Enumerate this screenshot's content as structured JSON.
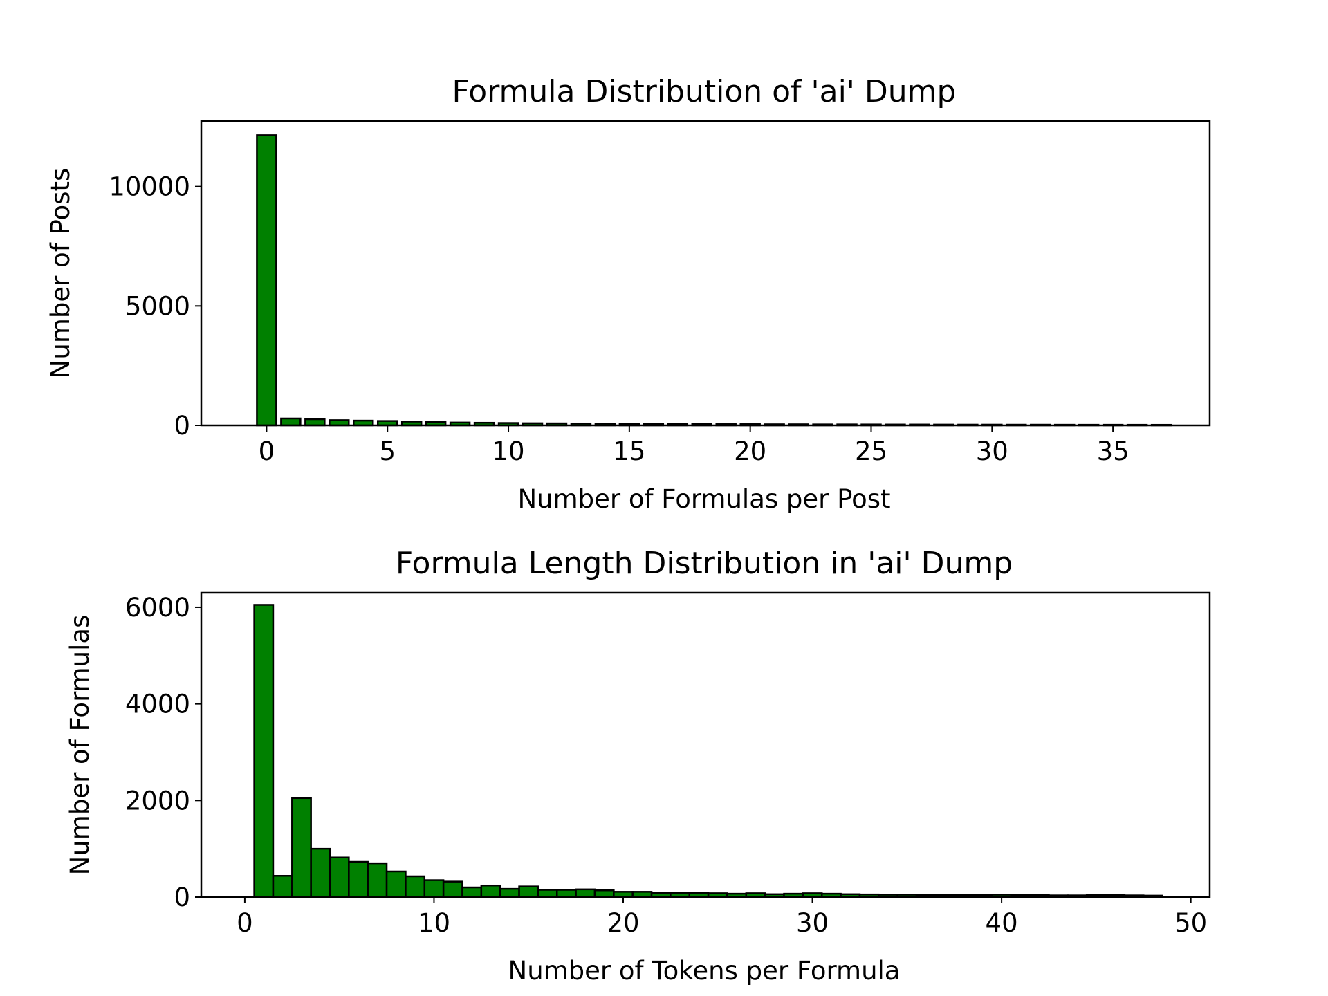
{
  "chart_data": [
    {
      "type": "bar",
      "title": "Formula Distribution of 'ai' Dump",
      "xlabel": "Number of Formulas per Post",
      "ylabel": "Number of Posts",
      "xlim": [
        -2.7,
        39.0
      ],
      "ylim": [
        0,
        12740
      ],
      "xticks": [
        0,
        5,
        10,
        15,
        20,
        25,
        30,
        35
      ],
      "yticks": [
        0,
        5000,
        10000
      ],
      "bar_color": "#008000",
      "grid": false,
      "x": [
        0,
        1,
        2,
        3,
        4,
        5,
        6,
        7,
        8,
        9,
        10,
        11,
        12,
        13,
        14,
        15,
        16,
        17,
        18,
        19,
        20,
        21,
        22,
        23,
        24,
        25,
        26,
        27,
        28,
        29,
        30,
        31,
        32,
        33,
        34,
        35,
        36,
        37
      ],
      "values": [
        12150,
        290,
        260,
        220,
        200,
        185,
        160,
        140,
        120,
        110,
        100,
        90,
        85,
        80,
        75,
        70,
        65,
        60,
        55,
        50,
        50,
        45,
        45,
        40,
        40,
        38,
        35,
        35,
        32,
        30,
        30,
        28,
        28,
        26,
        25,
        25,
        24,
        23
      ]
    },
    {
      "type": "bar",
      "title": "Formula Length Distribution in 'ai' Dump",
      "xlabel": "Number of Tokens per Formula",
      "ylabel": "Number of Formulas",
      "xlim": [
        -2.3,
        51.0
      ],
      "ylim": [
        0,
        6300
      ],
      "xticks": [
        0,
        10,
        20,
        30,
        40,
        50
      ],
      "yticks": [
        0,
        2000,
        4000,
        6000
      ],
      "bar_color": "#008000",
      "grid": false,
      "x": [
        1,
        2,
        3,
        4,
        5,
        6,
        7,
        8,
        9,
        10,
        11,
        12,
        13,
        14,
        15,
        16,
        17,
        18,
        19,
        20,
        21,
        22,
        23,
        24,
        25,
        26,
        27,
        28,
        29,
        30,
        31,
        32,
        33,
        34,
        35,
        36,
        37,
        38,
        39,
        40,
        41,
        42,
        43,
        44,
        45,
        46,
        47,
        48
      ],
      "values": [
        6050,
        440,
        2050,
        1000,
        820,
        730,
        700,
        530,
        430,
        350,
        320,
        200,
        240,
        170,
        220,
        150,
        150,
        160,
        140,
        110,
        110,
        90,
        90,
        90,
        80,
        70,
        80,
        60,
        70,
        80,
        70,
        60,
        55,
        50,
        50,
        45,
        45,
        45,
        40,
        50,
        45,
        40,
        35,
        35,
        45,
        40,
        35,
        30
      ]
    }
  ]
}
